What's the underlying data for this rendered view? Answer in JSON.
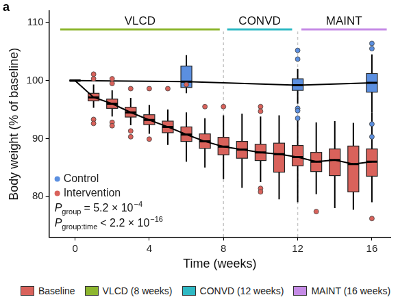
{
  "chart_data": {
    "type": "boxplot",
    "panel_label": "a",
    "x_label": "Time (weeks)",
    "y_label": "Body weight (% of baseline)",
    "xlim": [
      -1.4,
      17
    ],
    "xticks": [
      0,
      4,
      8,
      12,
      16
    ],
    "ylim": [
      73,
      112
    ],
    "yticks": [
      80,
      90,
      100,
      110
    ],
    "grid": false,
    "legend": "bottom-left",
    "phases": [
      {
        "label": "VLCD",
        "start": -0.8,
        "end": 7.8,
        "color": "#8db62f"
      },
      {
        "label": "CONVD",
        "start": 8.2,
        "end": 11.7,
        "color": "#2fb9c4"
      },
      {
        "label": "MAINT",
        "start": 12.2,
        "end": 16.8,
        "color": "#c58be6"
      }
    ],
    "dividers": [
      8,
      12
    ],
    "stats": [
      {
        "symbol": "P",
        "subscript": "group",
        "relation": "=",
        "mantissa": "5.2 × 10",
        "exponent": "−4"
      },
      {
        "symbol": "P",
        "subscript": "group:time",
        "relation": "<",
        "mantissa": "2.2 × 10",
        "exponent": "−16"
      }
    ],
    "series": [
      {
        "name": "Control",
        "color": "#5b8fe0",
        "x": [
          0,
          6,
          12,
          16
        ],
        "whisker_low": [
          100,
          97.8,
          96,
          94.5
        ],
        "q1": [
          100,
          98.8,
          98.3,
          98
        ],
        "median": [
          100,
          99.8,
          99.2,
          99.6
        ],
        "q3": [
          100,
          102.5,
          100.3,
          101.2
        ],
        "whisker_high": [
          100,
          104.4,
          102,
          104.5
        ],
        "outliers": [
          [],
          [],
          [
            105.2,
            103.7,
            95.2,
            94.8,
            93.5
          ],
          [
            106.4,
            105.5,
            92.5,
            90.3
          ]
        ]
      },
      {
        "name": "Intervention",
        "color": "#d9625b",
        "x": [
          0,
          1,
          2,
          3,
          4,
          5,
          6,
          7,
          8,
          9,
          10,
          11,
          12,
          13,
          14,
          15,
          16
        ],
        "whisker_low": [
          100,
          95.3,
          93.8,
          92.3,
          90.8,
          88.9,
          86,
          85,
          83,
          81.5,
          82.5,
          79.5,
          79,
          80.4,
          78,
          77.7,
          79
        ],
        "q1": [
          100,
          96.5,
          95.2,
          93.7,
          92.4,
          91,
          89.5,
          88.3,
          87.2,
          86.6,
          86.2,
          84.2,
          85.3,
          84.3,
          83.6,
          80.8,
          83.5
        ],
        "median": [
          100,
          97.1,
          96,
          94.5,
          93.2,
          92,
          90.7,
          89.5,
          88.6,
          88.1,
          87.6,
          87.3,
          86.8,
          86,
          86.3,
          85.6,
          86
        ],
        "q3": [
          100,
          97.8,
          96.8,
          95.4,
          94.1,
          93,
          92,
          90.8,
          90.2,
          89.5,
          89,
          89.2,
          88.8,
          87.6,
          88.2,
          88.7,
          88.2
        ],
        "whisker_high": [
          100,
          99.3,
          98.3,
          97,
          95.8,
          95,
          94.5,
          93.5,
          94,
          94.3,
          93.8,
          94,
          93.3,
          92.8,
          93,
          92.7,
          94.5
        ],
        "outliers": [
          [],
          [
            101.1,
            100.3,
            93.3,
            92.6
          ],
          [
            100.3,
            99.5,
            92.8,
            92.2
          ],
          [
            98.6,
            91.3,
            90.3
          ],
          [
            98.6,
            89.9
          ],
          [
            98.6
          ],
          [
            99.3
          ],
          [
            95.5
          ],
          [
            95.5
          ],
          [],
          [
            95.5,
            94.7,
            81.4,
            80.8
          ],
          [],
          [],
          [
            77.4
          ],
          [],
          [],
          [
            76.2
          ]
        ]
      }
    ],
    "phase_legend": [
      {
        "label": "Baseline",
        "color": "#d9625b"
      },
      {
        "label": "VLCD (8 weeks)",
        "color": "#8db62f"
      },
      {
        "label": "CONVD (12 weeks)",
        "color": "#2fb9c4"
      },
      {
        "label": "MAINT (16 weeks)",
        "color": "#c58be6"
      }
    ]
  }
}
